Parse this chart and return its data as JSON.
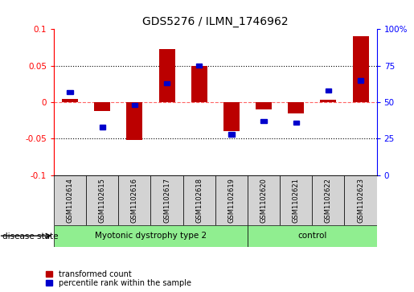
{
  "title": "GDS5276 / ILMN_1746962",
  "samples": [
    "GSM1102614",
    "GSM1102615",
    "GSM1102616",
    "GSM1102617",
    "GSM1102618",
    "GSM1102619",
    "GSM1102620",
    "GSM1102621",
    "GSM1102622",
    "GSM1102623"
  ],
  "red_values": [
    0.005,
    -0.012,
    -0.052,
    0.073,
    0.05,
    -0.04,
    -0.01,
    -0.015,
    0.003,
    0.09
  ],
  "blue_values_pct": [
    57,
    33,
    48,
    63,
    75,
    28,
    37,
    36,
    58,
    65
  ],
  "ylim_left": [
    -0.1,
    0.1
  ],
  "ylim_right": [
    0,
    100
  ],
  "left_ticks": [
    -0.1,
    -0.05,
    0.0,
    0.05,
    0.1
  ],
  "right_ticks": [
    0,
    25,
    50,
    75,
    100
  ],
  "left_tick_labels": [
    "-0.1",
    "-0.05",
    "0",
    "0.05",
    "0.1"
  ],
  "right_tick_labels": [
    "0",
    "25",
    "50",
    "75",
    "100%"
  ],
  "disease_groups": [
    {
      "label": "Myotonic dystrophy type 2",
      "color": "#90ee90",
      "start": 0,
      "end": 6
    },
    {
      "label": "control",
      "color": "#90ee90",
      "start": 6,
      "end": 10
    }
  ],
  "red_color": "#bb0000",
  "blue_color": "#0000cc",
  "bar_width": 0.5,
  "blue_bar_width": 0.18,
  "blue_bar_height": 0.006,
  "grid_color": "#000000",
  "zero_line_color": "#ff6666",
  "background_plot": "#ffffff",
  "background_label": "#d3d3d3",
  "legend_red": "transformed count",
  "legend_blue": "percentile rank within the sample",
  "disease_label": "disease state"
}
